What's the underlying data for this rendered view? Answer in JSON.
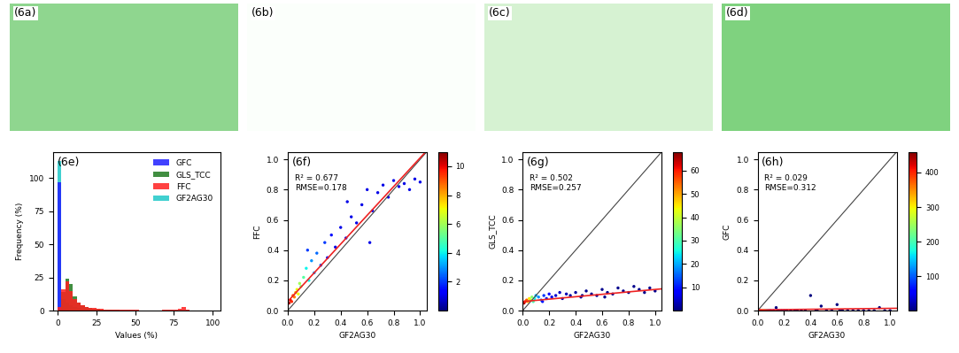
{
  "chart_data": [
    {
      "type": "image",
      "label": "(6a)",
      "color": "#8fd68f"
    },
    {
      "type": "image",
      "label": "(6b)",
      "color": "#fbfffb"
    },
    {
      "type": "image",
      "label": "(6c)",
      "color": "#d6f2d2"
    },
    {
      "type": "image",
      "label": "(6d)",
      "color": "#7fd27f"
    },
    {
      "type": "histogram",
      "label": "(6e)",
      "xlabel": "Values (%)",
      "ylabel": "Frequency (%)",
      "bins": [
        0,
        2.5,
        5,
        7.5,
        10,
        12.5,
        15,
        17.5,
        20,
        22.5,
        25,
        27.5,
        30,
        32.5,
        35,
        37.5,
        40,
        42.5,
        45,
        47.5,
        50,
        52.5,
        55,
        57.5,
        60,
        62.5,
        65,
        67.5,
        70,
        72.5,
        75,
        77.5,
        80,
        82.5,
        85,
        87.5,
        90,
        92.5,
        95,
        97.5,
        100
      ],
      "series": [
        {
          "name": "GFC",
          "color": "#1f1fff",
          "values": [
            97,
            1.5,
            0.5,
            0.3,
            0.2,
            0,
            0,
            0,
            0,
            0,
            0,
            0,
            0,
            0,
            0,
            0,
            0,
            0,
            0,
            0,
            0,
            0,
            0,
            0,
            0,
            0,
            0,
            0,
            0,
            0,
            0,
            0,
            0,
            0,
            0,
            0,
            0,
            0,
            0,
            0
          ]
        },
        {
          "name": "GLS_TCC",
          "color": "#1f7a1f",
          "values": [
            1,
            14,
            24,
            20,
            11,
            6,
            4,
            3,
            2,
            1.5,
            1.2,
            1,
            0.8,
            0.7,
            0.6,
            0.5,
            0.4,
            0.4,
            0.3,
            0.3,
            0.3,
            0.2,
            0.2,
            0.2,
            0.2,
            0.2,
            0.1,
            0.1,
            0.1,
            0.1,
            0.1,
            0.1,
            0.1,
            0,
            0,
            0,
            0,
            0,
            0,
            0
          ]
        },
        {
          "name": "FFC",
          "color": "#ff2020",
          "values": [
            3,
            16,
            22,
            15,
            9,
            6,
            4,
            3,
            2.2,
            1.8,
            1.5,
            1.2,
            1,
            0.9,
            0.8,
            0.7,
            0.6,
            0.6,
            0.5,
            0.5,
            0.5,
            0.4,
            0.4,
            0.4,
            0.4,
            0.4,
            0.4,
            0.5,
            0.5,
            0.6,
            0.8,
            1.5,
            3,
            0.5,
            0.2,
            0.1,
            0,
            0,
            0,
            0
          ]
        },
        {
          "name": "GF2AG30",
          "color": "#20c8c8",
          "values": [
            113,
            9,
            6,
            4,
            3,
            2,
            1.5,
            1.2,
            1,
            0.8,
            0.7,
            0.6,
            0.5,
            0.5,
            0.4,
            0.4,
            0.3,
            0.3,
            0.3,
            0.3,
            0.2,
            0.2,
            0.2,
            0.2,
            0.2,
            0.2,
            0.2,
            0.2,
            0.2,
            0.2,
            0.2,
            0.2,
            0.2,
            0.2,
            0.1,
            0.1,
            0.1,
            0.1,
            0.1,
            0.1
          ]
        }
      ],
      "xlim": [
        -3,
        105
      ],
      "xticks": [
        0,
        25,
        50,
        75,
        100
      ],
      "ylim": [
        0,
        120
      ],
      "yticks": [
        0,
        25,
        50,
        75,
        100
      ],
      "legend": "upper right"
    },
    {
      "type": "scatter",
      "label": "(6f)",
      "xlabel": "GF2AG30",
      "ylabel": "FFC",
      "annotations": [
        "R² = 0.677",
        "RMSE=0.178"
      ],
      "x": [
        0.01,
        0.02,
        0.03,
        0.04,
        0.05,
        0.06,
        0.07,
        0.08,
        0.09,
        0.1,
        0.12,
        0.14,
        0.16,
        0.18,
        0.2,
        0.22,
        0.25,
        0.28,
        0.3,
        0.33,
        0.36,
        0.4,
        0.44,
        0.48,
        0.52,
        0.56,
        0.6,
        0.64,
        0.68,
        0.72,
        0.76,
        0.8,
        0.84,
        0.88,
        0.92,
        0.96,
        1.0,
        0.62,
        0.45,
        0.15
      ],
      "y": [
        0.05,
        0.07,
        0.06,
        0.1,
        0.09,
        0.12,
        0.14,
        0.11,
        0.18,
        0.16,
        0.22,
        0.28,
        0.2,
        0.33,
        0.25,
        0.38,
        0.3,
        0.45,
        0.35,
        0.5,
        0.42,
        0.55,
        0.48,
        0.62,
        0.58,
        0.7,
        0.8,
        0.66,
        0.78,
        0.83,
        0.75,
        0.86,
        0.82,
        0.84,
        0.8,
        0.87,
        0.85,
        0.45,
        0.72,
        0.4
      ],
      "density": [
        10.5,
        10,
        9.5,
        9,
        8.5,
        8,
        7,
        7,
        6,
        5.5,
        5,
        4,
        4,
        3,
        3,
        2.5,
        2,
        2,
        1.5,
        1.5,
        1,
        1,
        1,
        1,
        1,
        1,
        1,
        1,
        1,
        1,
        1,
        1,
        1,
        1,
        1,
        1,
        1,
        1,
        1,
        2
      ],
      "fit": {
        "slope": 0.95,
        "intercept": 0.06
      },
      "xlim": [
        0.0,
        1.05
      ],
      "xticks": [
        0.0,
        0.2,
        0.4,
        0.6,
        0.8,
        1.0
      ],
      "ylim": [
        0.0,
        1.05
      ],
      "yticks": [
        0.0,
        0.2,
        0.4,
        0.6,
        0.8,
        1.0
      ],
      "colorbar": {
        "range": [
          0,
          11
        ],
        "ticks": [
          2,
          4,
          6,
          8,
          10
        ]
      }
    },
    {
      "type": "scatter",
      "label": "(6g)",
      "xlabel": "GF2AG30",
      "ylabel": "GLS_TCC",
      "annotations": [
        "R² = 0.502",
        "RMSE=0.257"
      ],
      "x": [
        0.01,
        0.02,
        0.03,
        0.04,
        0.05,
        0.06,
        0.07,
        0.08,
        0.09,
        0.1,
        0.12,
        0.14,
        0.16,
        0.18,
        0.2,
        0.22,
        0.25,
        0.28,
        0.3,
        0.33,
        0.36,
        0.4,
        0.44,
        0.48,
        0.52,
        0.56,
        0.6,
        0.64,
        0.68,
        0.72,
        0.76,
        0.8,
        0.84,
        0.88,
        0.92,
        0.96,
        1.0,
        0.62,
        0.45,
        0.15
      ],
      "y": [
        0.05,
        0.06,
        0.07,
        0.06,
        0.08,
        0.07,
        0.09,
        0.06,
        0.08,
        0.1,
        0.09,
        0.07,
        0.1,
        0.08,
        0.11,
        0.09,
        0.1,
        0.12,
        0.08,
        0.11,
        0.1,
        0.12,
        0.09,
        0.13,
        0.11,
        0.1,
        0.14,
        0.12,
        0.11,
        0.15,
        0.13,
        0.12,
        0.16,
        0.14,
        0.12,
        0.15,
        0.13,
        0.09,
        0.1,
        0.06
      ],
      "density": [
        65,
        60,
        55,
        50,
        45,
        40,
        35,
        30,
        25,
        20,
        18,
        15,
        12,
        10,
        8,
        6,
        5,
        4,
        3,
        3,
        2,
        2,
        2,
        1,
        1,
        1,
        1,
        1,
        1,
        1,
        1,
        1,
        1,
        1,
        1,
        1,
        1,
        1,
        1,
        10
      ],
      "fit": {
        "slope": 0.08,
        "intercept": 0.06
      },
      "xlim": [
        0.0,
        1.05
      ],
      "xticks": [
        0.0,
        0.2,
        0.4,
        0.6,
        0.8,
        1.0
      ],
      "ylim": [
        0.0,
        1.05
      ],
      "yticks": [
        0.0,
        0.2,
        0.4,
        0.6,
        0.8,
        1.0
      ],
      "colorbar": {
        "range": [
          0,
          68
        ],
        "ticks": [
          10,
          20,
          30,
          40,
          50,
          60
        ]
      }
    },
    {
      "type": "scatter",
      "label": "(6h)",
      "xlabel": "GF2AG30",
      "ylabel": "GFC",
      "annotations": [
        "R² = 0.029",
        "RMSE=0.312"
      ],
      "x": [
        0.01,
        0.02,
        0.03,
        0.04,
        0.05,
        0.06,
        0.07,
        0.08,
        0.09,
        0.1,
        0.12,
        0.14,
        0.16,
        0.18,
        0.2,
        0.22,
        0.25,
        0.28,
        0.3,
        0.33,
        0.36,
        0.4,
        0.44,
        0.48,
        0.52,
        0.56,
        0.6,
        0.64,
        0.68,
        0.72,
        0.76,
        0.8,
        0.84,
        0.88,
        0.92,
        0.96,
        1.0,
        0.62,
        0.45,
        0.15
      ],
      "y": [
        0.0,
        0.0,
        0.0,
        0.0,
        0.0,
        0.0,
        0.0,
        0.0,
        0.0,
        0.0,
        0.0,
        0.02,
        0.0,
        0.0,
        0.0,
        0.0,
        0.0,
        0.0,
        0.0,
        0.0,
        0.0,
        0.1,
        0.0,
        0.03,
        0.0,
        0.0,
        0.04,
        0.0,
        0.0,
        0.0,
        0.0,
        0.0,
        0.0,
        0.0,
        0.02,
        0.0,
        0.0,
        0.0,
        0.0,
        0.0
      ],
      "density": [
        450,
        400,
        350,
        300,
        250,
        200,
        150,
        120,
        100,
        80,
        60,
        1,
        50,
        40,
        30,
        25,
        20,
        15,
        10,
        8,
        6,
        1,
        5,
        1,
        4,
        3,
        1,
        3,
        2,
        2,
        2,
        2,
        1,
        1,
        1,
        1,
        1,
        1,
        1,
        30
      ],
      "fit": {
        "slope": 0.01,
        "intercept": 0.005
      },
      "xlim": [
        0.0,
        1.05
      ],
      "xticks": [
        0.0,
        0.2,
        0.4,
        0.6,
        0.8,
        1.0
      ],
      "ylim": [
        0.0,
        1.05
      ],
      "yticks": [
        0.0,
        0.2,
        0.4,
        0.6,
        0.8,
        1.0
      ],
      "colorbar": {
        "range": [
          0,
          460
        ],
        "ticks": [
          100,
          200,
          300,
          400
        ]
      }
    }
  ]
}
